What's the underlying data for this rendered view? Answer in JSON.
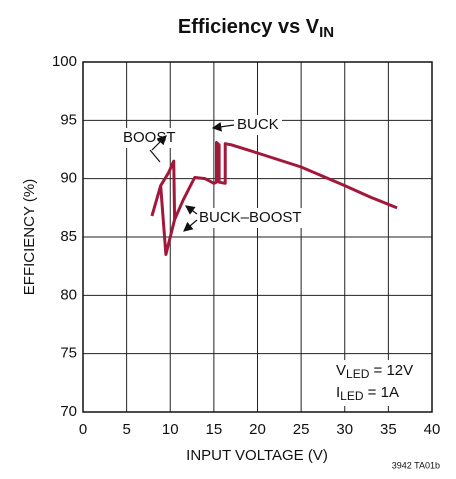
{
  "chart_data": {
    "type": "line",
    "title": [
      "Efficiency vs V",
      "IN"
    ],
    "x_label": "INPUT VOLTAGE (V)",
    "y_label": "EFFICIENCY (%)",
    "footnote": "3942 TA01b",
    "annotations": [
      "BOOST",
      "BUCK",
      "BUCK–BOOST"
    ],
    "conditions": [
      [
        "V",
        "LED",
        " = 12V"
      ],
      [
        "I",
        "LED",
        " = 1A"
      ]
    ],
    "x": [
      7.9,
      8.9,
      9.8,
      10.4,
      10.5,
      11.5,
      12.8,
      14,
      15,
      15.3,
      15.3,
      15.6,
      15.6,
      16.3,
      16.3,
      17,
      20,
      25,
      30,
      33,
      36,
      null,
      8.9,
      9.5,
      10.5
    ],
    "series": [
      {
        "color": "#a3173b",
        "values": [
          86.8,
          89.4,
          90.5,
          91.5,
          86.5,
          88.2,
          90.1,
          90,
          89.6,
          89.7,
          93.1,
          92.9,
          89.7,
          89.6,
          93,
          92.9,
          92.2,
          91,
          89.4,
          88.4,
          87.5,
          null,
          89.4,
          83.5,
          86.5
        ]
      }
    ],
    "xlim": [
      0,
      40
    ],
    "xticks": [
      0,
      5,
      10,
      15,
      20,
      25,
      30,
      35,
      40
    ],
    "ylim": [
      70,
      100
    ],
    "yticks": [
      70,
      75,
      80,
      85,
      90,
      95,
      100
    ],
    "grid": true
  }
}
